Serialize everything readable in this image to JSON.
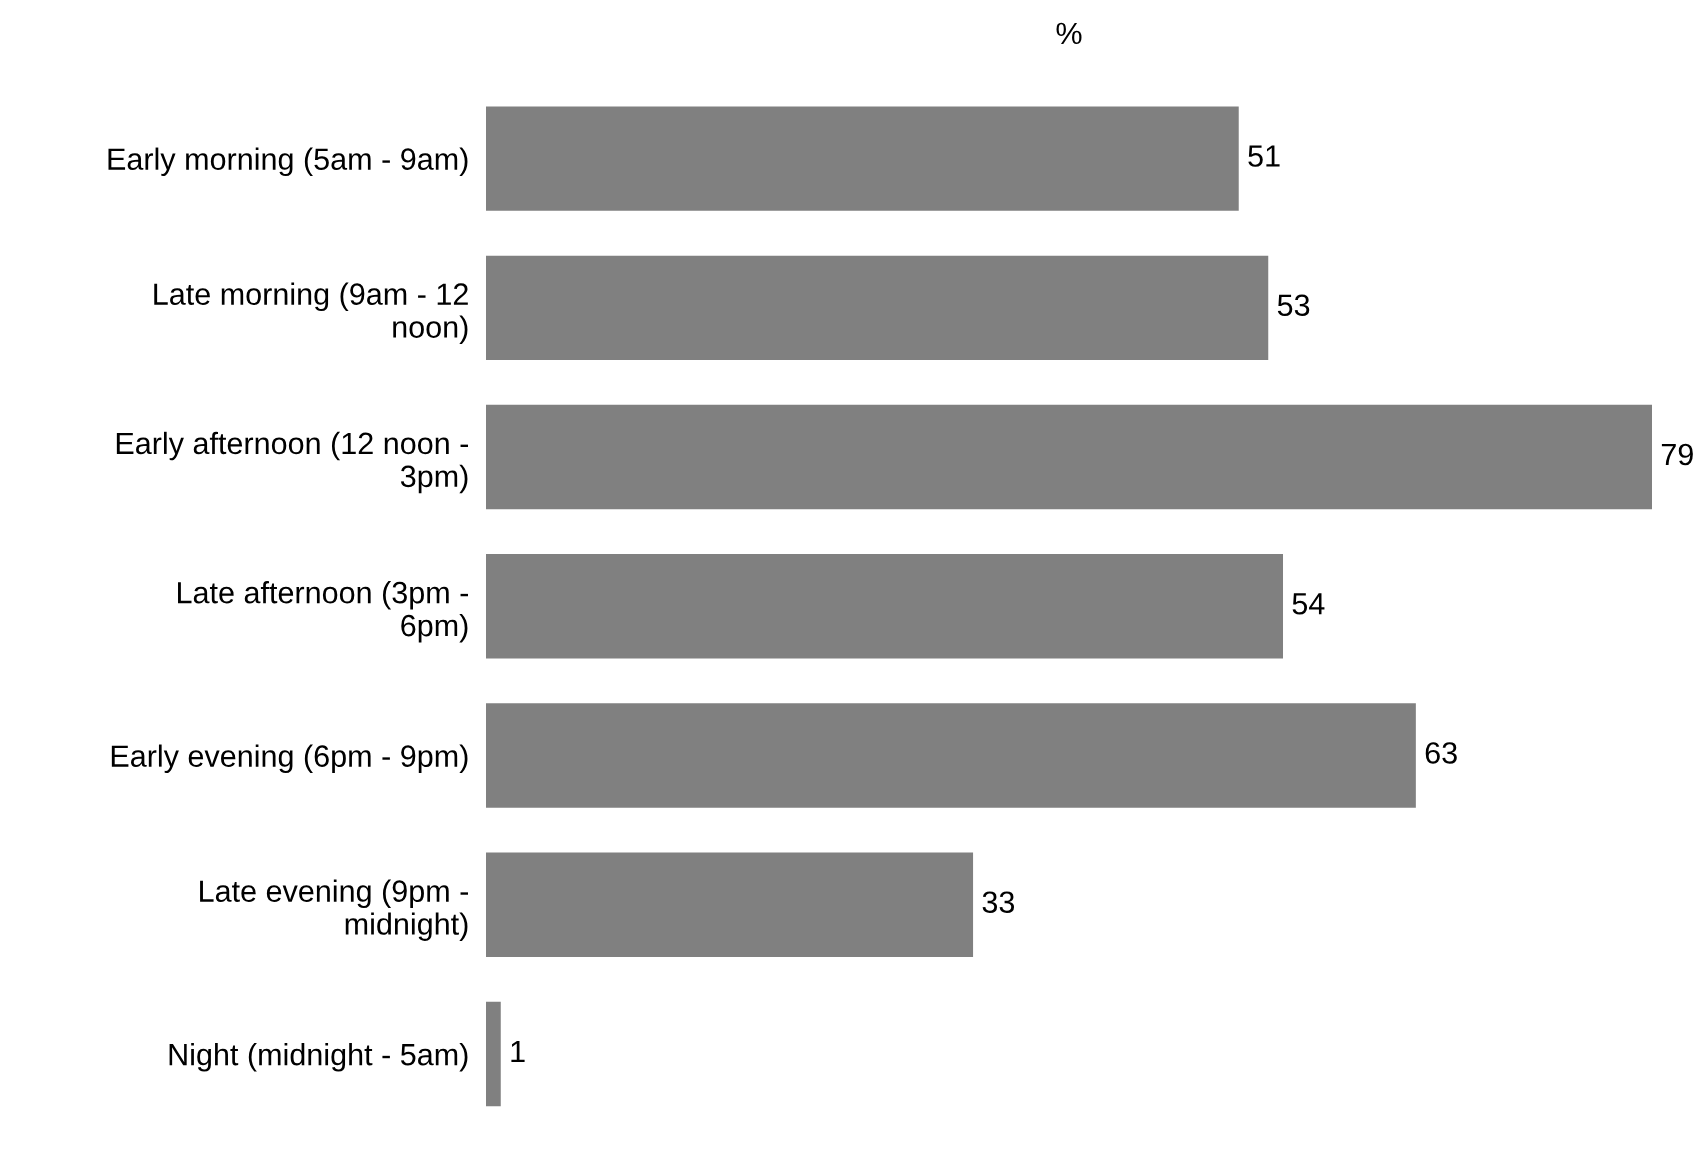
{
  "chart_data": {
    "type": "bar",
    "orientation": "horizontal",
    "title": "%",
    "categories": [
      "Early morning (5am - 9am)",
      "Late morning (9am - 12\nnoon)",
      "Early afternoon (12 noon -\n3pm)",
      "Late afternoon (3pm -\n6pm)",
      "Early evening (6pm - 9pm)",
      "Late evening (9pm -\nmidnight)",
      "Night (midnight - 5am)"
    ],
    "values": [
      51,
      53,
      79,
      54,
      63,
      33,
      1
    ],
    "color": "#808080",
    "data_labels": true
  }
}
